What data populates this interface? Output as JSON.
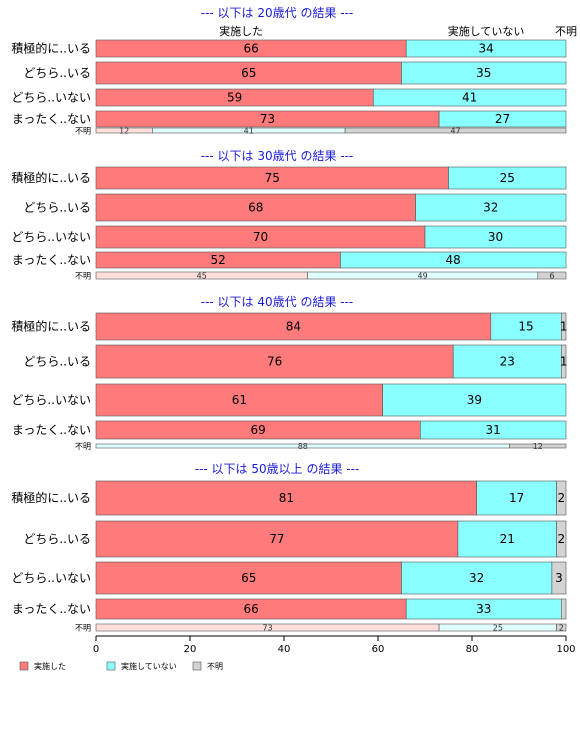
{
  "legend": [
    {
      "name": "実施した",
      "color": "#ff7a7a"
    },
    {
      "name": "実施していない",
      "color": "#8affff"
    },
    {
      "name": "不明",
      "color": "#d3d3d3"
    }
  ],
  "chart_data": {
    "type": "bar",
    "orientation": "horizontal",
    "stacked": true,
    "xlim": [
      0,
      100
    ],
    "x_ticks": [
      0,
      20,
      40,
      60,
      80,
      100
    ],
    "column_headers": [
      "実施した",
      "実施していない",
      "不明"
    ],
    "categories": [
      "積極的に..いる",
      "どちら..いる",
      "どちら..いない",
      "まったく..ない",
      "不明"
    ],
    "legend_position": "bottom-left",
    "panels": [
      {
        "title": "--- 以下は 20歳代 の結果 ---",
        "show_column_headers": true,
        "rows": [
          {
            "label": "積極的に..いる",
            "values": [
              66,
              34,
              0
            ],
            "labels": [
              "66",
              "34",
              ""
            ]
          },
          {
            "label": "どちら..いる",
            "values": [
              65,
              35,
              0
            ],
            "labels": [
              "65",
              "35",
              ""
            ]
          },
          {
            "label": "どちら..いない",
            "values": [
              59,
              41,
              0
            ],
            "labels": [
              "59",
              "41",
              ""
            ]
          },
          {
            "label": "まったく..ない",
            "values": [
              73,
              27,
              0
            ],
            "labels": [
              "73",
              "27",
              ""
            ]
          },
          {
            "label": "不明",
            "values": [
              12,
              41,
              47
            ],
            "labels": [
              "12",
              "41",
              "47"
            ]
          }
        ]
      },
      {
        "title": "--- 以下は 30歳代 の結果 ---",
        "show_column_headers": false,
        "rows": [
          {
            "label": "積極的に..いる",
            "values": [
              75,
              25,
              0
            ],
            "labels": [
              "75",
              "25",
              ""
            ]
          },
          {
            "label": "どちら..いる",
            "values": [
              68,
              32,
              0
            ],
            "labels": [
              "68",
              "32",
              ""
            ]
          },
          {
            "label": "どちら..いない",
            "values": [
              70,
              30,
              0
            ],
            "labels": [
              "70",
              "30",
              ""
            ]
          },
          {
            "label": "まったく..ない",
            "values": [
              52,
              48,
              0
            ],
            "labels": [
              "52",
              "48",
              ""
            ]
          },
          {
            "label": "不明",
            "values": [
              45,
              49,
              6
            ],
            "labels": [
              "45",
              "49",
              "6"
            ]
          }
        ]
      },
      {
        "title": "--- 以下は 40歳代 の結果 ---",
        "show_column_headers": false,
        "rows": [
          {
            "label": "積極的に..いる",
            "values": [
              84,
              15,
              1
            ],
            "labels": [
              "84",
              "15",
              "1"
            ]
          },
          {
            "label": "どちら..いる",
            "values": [
              76,
              23,
              1
            ],
            "labels": [
              "76",
              "23",
              "1"
            ]
          },
          {
            "label": "どちら..いない",
            "values": [
              61,
              39,
              0
            ],
            "labels": [
              "61",
              "39",
              ""
            ]
          },
          {
            "label": "まったく..ない",
            "values": [
              69,
              31,
              0
            ],
            "labels": [
              "69",
              "31",
              ""
            ]
          },
          {
            "label": "不明",
            "values": [
              0,
              88,
              12
            ],
            "labels": [
              "",
              "88",
              "12"
            ]
          }
        ]
      },
      {
        "title": "--- 以下は 50歳以上 の結果 ---",
        "show_column_headers": false,
        "rows": [
          {
            "label": "積極的に..いる",
            "values": [
              81,
              17,
              2
            ],
            "labels": [
              "81",
              "17",
              "2"
            ]
          },
          {
            "label": "どちら..いる",
            "values": [
              77,
              21,
              2
            ],
            "labels": [
              "77",
              "21",
              "2"
            ]
          },
          {
            "label": "どちら..いない",
            "values": [
              65,
              32,
              3
            ],
            "labels": [
              "65",
              "32",
              "3"
            ]
          },
          {
            "label": "まったく..ない",
            "values": [
              66,
              33,
              1
            ],
            "labels": [
              "66",
              "33",
              ""
            ]
          },
          {
            "label": "不明",
            "values": [
              73,
              25,
              2
            ],
            "labels": [
              "73",
              "25",
              "2"
            ]
          }
        ]
      }
    ]
  }
}
